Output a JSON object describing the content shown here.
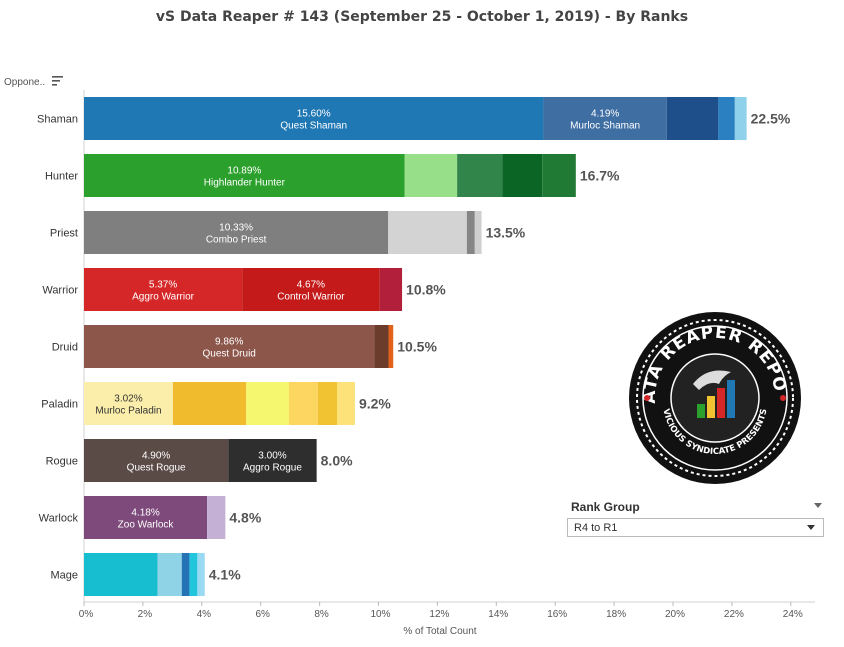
{
  "title": "vS Data Reaper #  143 (September 25 - October 1, 2019) - By Ranks",
  "column_header": "Oppone..",
  "rank_group": {
    "title": "Rank Group",
    "selected": "R4 to R1"
  },
  "logo": {
    "top_text": "DATA REAPER REPORT",
    "bottom_text": "VICIOUS SYNDICATE PRESENTS"
  },
  "chart_data": {
    "type": "bar",
    "orientation": "horizontal",
    "stacked": true,
    "title": "vS Data Reaper #  143 (September 25 - October 1, 2019) - By Ranks",
    "xlabel": "% of Total Count",
    "xlim": [
      0,
      24.5
    ],
    "x_ticks": [
      "0%",
      "2%",
      "4%",
      "6%",
      "8%",
      "10%",
      "12%",
      "14%",
      "16%",
      "18%",
      "20%",
      "22%",
      "24%"
    ],
    "categories": [
      "Shaman",
      "Hunter",
      "Priest",
      "Warrior",
      "Druid",
      "Paladin",
      "Rogue",
      "Warlock",
      "Mage"
    ],
    "totals": [
      "22.5%",
      "16.7%",
      "13.5%",
      "10.8%",
      "10.5%",
      "9.2%",
      "8.0%",
      "4.8%",
      "4.1%"
    ],
    "rows": [
      {
        "class": "Shaman",
        "total": 22.5,
        "segments": [
          {
            "value": 15.6,
            "color": "#1f77b4",
            "pct": "15.60%",
            "name": "Quest Shaman"
          },
          {
            "value": 4.19,
            "color": "#3f6ea3",
            "pct": "4.19%",
            "name": "Murloc Shaman"
          },
          {
            "value": 1.75,
            "color": "#1e4f8b"
          },
          {
            "value": 0.56,
            "color": "#2a80c1"
          },
          {
            "value": 0.4,
            "color": "#8fd0ea"
          }
        ]
      },
      {
        "class": "Hunter",
        "total": 16.7,
        "segments": [
          {
            "value": 10.89,
            "color": "#2ca02c",
            "pct": "10.89%",
            "name": "Highlander Hunter"
          },
          {
            "value": 1.78,
            "color": "#98df8a"
          },
          {
            "value": 1.53,
            "color": "#31844a"
          },
          {
            "value": 1.36,
            "color": "#0b6626"
          },
          {
            "value": 1.14,
            "color": "#217a34"
          }
        ]
      },
      {
        "class": "Priest",
        "total": 13.5,
        "segments": [
          {
            "value": 10.33,
            "color": "#7f7f7f",
            "pct": "10.33%",
            "name": "Combo Priest"
          },
          {
            "value": 2.67,
            "color": "#d3d3d3"
          },
          {
            "value": 0.27,
            "color": "#858585"
          },
          {
            "value": 0.23,
            "color": "#cfcfcf"
          }
        ]
      },
      {
        "class": "Warrior",
        "total": 10.8,
        "segments": [
          {
            "value": 5.37,
            "color": "#d62728",
            "pct": "5.37%",
            "name": "Aggro Warrior"
          },
          {
            "value": 4.67,
            "color": "#c41a1a",
            "pct": "4.67%",
            "name": "Control Warrior"
          },
          {
            "value": 0.76,
            "color": "#b21f3a"
          }
        ]
      },
      {
        "class": "Druid",
        "total": 10.5,
        "segments": [
          {
            "value": 9.86,
            "color": "#8c564b",
            "pct": "9.86%",
            "name": "Quest Druid"
          },
          {
            "value": 0.48,
            "color": "#6b3b2c"
          },
          {
            "value": 0.16,
            "color": "#e2621b"
          }
        ]
      },
      {
        "class": "Paladin",
        "total": 9.2,
        "segments": [
          {
            "value": 3.02,
            "color": "#fbeeaa",
            "pct": "3.02%",
            "name": "Murloc Paladin",
            "dark_label": true
          },
          {
            "value": 2.49,
            "color": "#f0bc2e"
          },
          {
            "value": 1.45,
            "color": "#f5f76e"
          },
          {
            "value": 0.98,
            "color": "#fdd662"
          },
          {
            "value": 0.65,
            "color": "#f1c232"
          },
          {
            "value": 0.61,
            "color": "#fde27a"
          }
        ]
      },
      {
        "class": "Rogue",
        "total": 8.0,
        "segments": [
          {
            "value": 4.9,
            "color": "#5b4b47",
            "pct": "4.90%",
            "name": "Quest Rogue"
          },
          {
            "value": 3.0,
            "color": "#2e2e2e",
            "pct": "3.00%",
            "name": "Aggro Rogue"
          }
        ]
      },
      {
        "class": "Warlock",
        "total": 4.8,
        "segments": [
          {
            "value": 4.18,
            "color": "#7d4a7b",
            "pct": "4.18%",
            "name": "Zoo Warlock"
          },
          {
            "value": 0.62,
            "color": "#c5b0d5"
          }
        ]
      },
      {
        "class": "Mage",
        "total": 4.1,
        "segments": [
          {
            "value": 2.5,
            "color": "#17becf"
          },
          {
            "value": 0.82,
            "color": "#8fd3e6"
          },
          {
            "value": 0.26,
            "color": "#2474b5"
          },
          {
            "value": 0.27,
            "color": "#21c6dd"
          },
          {
            "value": 0.25,
            "color": "#9ad9f2"
          }
        ]
      }
    ],
    "grid": false,
    "legend": "none"
  }
}
